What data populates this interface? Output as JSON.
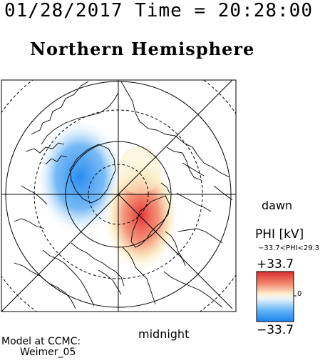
{
  "header": {
    "timestamp": "01/28/2017 Time = 20:28:00",
    "title": "Northern Hemisphere"
  },
  "plot": {
    "dawn_label": "dawn",
    "midnight_label": "midnight",
    "colors": {
      "positive": "#e83a3a",
      "negative": "#2f93f0",
      "neutral": "#ffffff"
    }
  },
  "colorbar": {
    "label": "PHI [kV]",
    "range_text": "−33.7<PHI<29.3",
    "max_label": "+33.7",
    "min_label": "−33.7",
    "zero_label": "0"
  },
  "model": {
    "line1": "Model at CCMC:",
    "line2": "Weimer_05"
  }
}
